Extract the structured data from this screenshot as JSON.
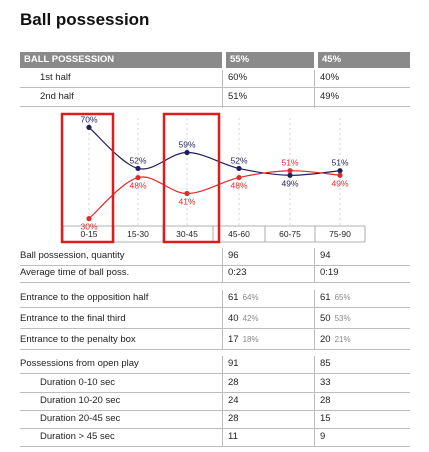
{
  "title": "Ball possession",
  "header": {
    "label": "BALL POSSESSION",
    "team1": "55%",
    "team2": "45%"
  },
  "halves": [
    {
      "label": "1st half",
      "team1": "60%",
      "team2": "40%"
    },
    {
      "label": "2nd half",
      "team1": "51%",
      "team2": "49%"
    }
  ],
  "chart_data": {
    "type": "line",
    "categories": [
      "0-15",
      "15-30",
      "30-45",
      "45-60",
      "60-75",
      "75-90"
    ],
    "series": [
      {
        "values": [
          70,
          52,
          59,
          52,
          49,
          51
        ],
        "labels": [
          "70%",
          "52%",
          "59%",
          "52%",
          "49%",
          "51%"
        ],
        "color": "#1f1f5e"
      },
      {
        "values": [
          30,
          48,
          41,
          48,
          51,
          49
        ],
        "labels": [
          "30%",
          "48%",
          "41%",
          "48%",
          "51%",
          "49%"
        ],
        "color": "#e02b2b"
      }
    ],
    "ylim": [
      25,
      75
    ],
    "highlight_color": "#e01b1b",
    "highlighted_categories": [
      "0-15",
      "30-45"
    ]
  },
  "stats_a": [
    {
      "label": "Ball possession, quantity",
      "team1": "96",
      "team2": "94"
    },
    {
      "label": "Average time of ball poss.",
      "team1": "0:23",
      "team2": "0:19"
    }
  ],
  "stats_b": [
    {
      "label": "Entrance to the opposition half",
      "team1": "61",
      "team1_pct": "64%",
      "team2": "61",
      "team2_pct": "65%"
    },
    {
      "label": "Entrance to the final third",
      "team1": "40",
      "team1_pct": "42%",
      "team2": "50",
      "team2_pct": "53%"
    },
    {
      "label": "Entrance to the penalty box",
      "team1": "17",
      "team1_pct": "18%",
      "team2": "20",
      "team2_pct": "21%"
    }
  ],
  "stats_c": [
    {
      "label": "Possessions from open play",
      "team1": "91",
      "team2": "85"
    },
    {
      "label": "Duration  0-10 sec",
      "team1": "28",
      "team2": "33"
    },
    {
      "label": "Duration  10-20 sec",
      "team1": "24",
      "team2": "28"
    },
    {
      "label": "Duration  20-45 sec",
      "team1": "28",
      "team2": "15"
    },
    {
      "label": "Duration  > 45 sec",
      "team1": "11",
      "team2": "9"
    }
  ]
}
